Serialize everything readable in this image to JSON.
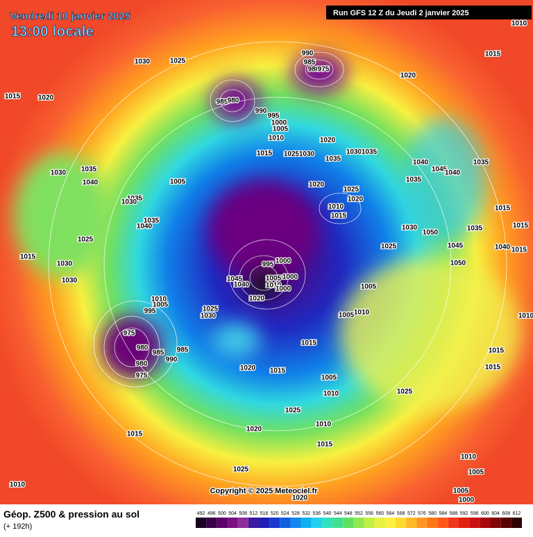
{
  "header": {
    "date": "Vendredi 10 janvier 2025",
    "time": "13:00 locale",
    "run": "Run GFS 12 Z du Jeudi 2 janvier 2025"
  },
  "copyright": "Copyright © 2025 Meteociel.fr",
  "footer": {
    "title": "Géop. Z500 & pression au sol",
    "lead": "(+ 192h)"
  },
  "scale": {
    "labels": [
      492,
      496,
      500,
      504,
      508,
      512,
      516,
      520,
      524,
      528,
      532,
      536,
      540,
      544,
      548,
      552,
      556,
      560,
      564,
      568,
      572,
      576,
      580,
      584,
      588,
      592,
      596,
      600,
      604,
      608,
      612
    ],
    "colors": [
      "#1a0020",
      "#3c0048",
      "#5a0066",
      "#7a1084",
      "#8e2e9c",
      "#3a1aa0",
      "#2020b8",
      "#1838d0",
      "#1060e0",
      "#1088f0",
      "#10b0f0",
      "#20d0f0",
      "#30e0c0",
      "#40e090",
      "#60e060",
      "#90e850",
      "#c0f040",
      "#e8f040",
      "#fff040",
      "#ffd830",
      "#ffb828",
      "#ff9820",
      "#ff7818",
      "#ff5818",
      "#f03818",
      "#e02010",
      "#c81010",
      "#a80808",
      "#800404",
      "#580202",
      "#300000"
    ]
  },
  "isobar_labels": [
    1030,
    1025,
    1015,
    1020,
    990,
    985,
    980,
    975,
    985,
    980,
    990,
    995,
    1000,
    1005,
    1010,
    1015,
    1020,
    1025,
    1030,
    1035,
    1030,
    1035,
    1020,
    1015,
    1040,
    1045,
    1040,
    1035,
    1035,
    1030,
    1035,
    1040,
    1005,
    1020,
    1025,
    1020,
    1010,
    1015,
    1035,
    1030,
    1035,
    1040,
    1025,
    1015,
    1030,
    1030,
    1030,
    1050,
    1045,
    1025,
    1015,
    1015,
    1035,
    1050,
    1040,
    1015,
    995,
    1000,
    1045,
    1040,
    1005,
    1010,
    1000,
    1000,
    1020,
    1005,
    1005,
    1010,
    1010,
    1005,
    995,
    1025,
    1030,
    975,
    980,
    985,
    985,
    990,
    980,
    975,
    1015,
    1020,
    1015,
    1005,
    1010,
    1025,
    1015,
    1015,
    1010,
    1025,
    1010,
    1020,
    1015,
    1015,
    1025,
    1010,
    1010,
    1005,
    1005,
    1000,
    1020,
    1010
  ]
}
